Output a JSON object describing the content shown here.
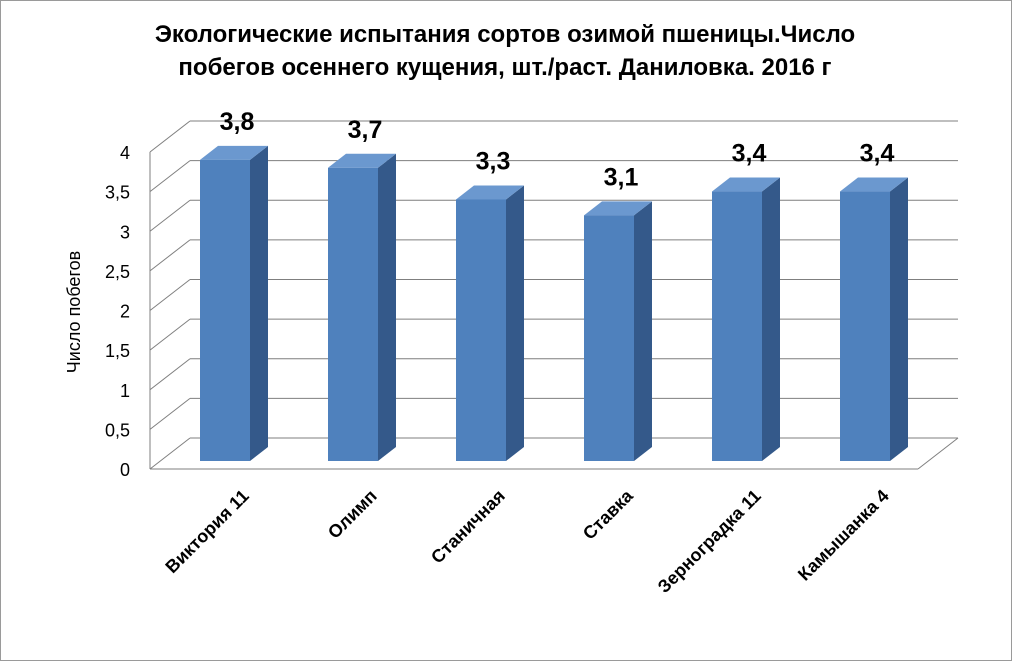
{
  "chart_data": {
    "type": "bar",
    "title": "Экологические испытания сортов озимой пшеницы.Число побегов осеннего кущения, шт./раст. Даниловка. 2016 г",
    "ylabel": "Число побегов",
    "xlabel": "",
    "categories": [
      "Виктория 11",
      "Олимп",
      "Станичная",
      "Ставка",
      "Зерноградка 11",
      "Камышанка 4"
    ],
    "values": [
      3.8,
      3.7,
      3.3,
      3.1,
      3.4,
      3.4
    ],
    "data_labels": [
      "3,8",
      "3,7",
      "3,3",
      "3,1",
      "3,4",
      "3,4"
    ],
    "ylim": [
      0,
      4
    ],
    "yticks": [
      "0",
      "0,5",
      "1",
      "1,5",
      "2",
      "2,5",
      "3",
      "3,5",
      "4"
    ],
    "grid": true,
    "legend": "none",
    "style": "3d-column",
    "colors": {
      "bar_front": "#4f81bd",
      "bar_side": "#34598a",
      "bar_top": "#6b98cf",
      "grid": "#7f7f7f"
    }
  }
}
